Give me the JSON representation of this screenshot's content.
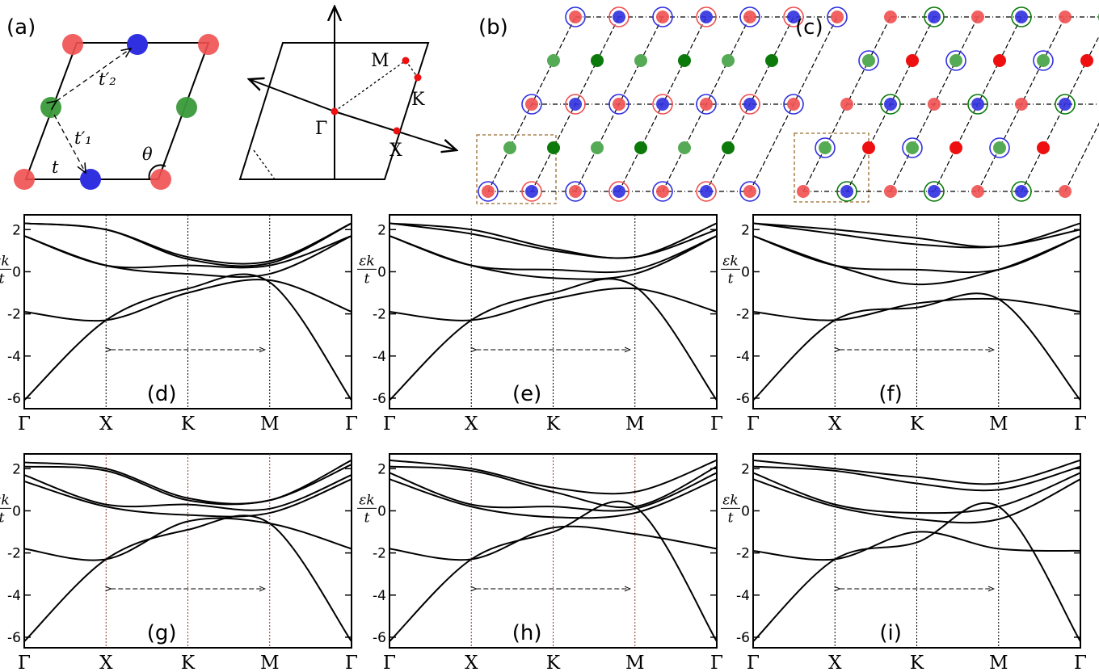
{
  "panel_labels": {
    "a": "(a)",
    "b": "(b)",
    "c": "(c)"
  },
  "lattice": {
    "t": "t",
    "t1": "t′₁",
    "t2": "t′₂",
    "theta": "θ"
  },
  "bz": {
    "gamma": "Γ",
    "m": "M",
    "k": "K",
    "x": "X"
  },
  "ylabel_num": "εk",
  "ylabel_den": "t",
  "colors": {
    "red": "#f05050",
    "blue": "#3030e0",
    "green": "#3a9a3a",
    "darkgreen": "#0b7a0b",
    "brightred": "#ee1010",
    "bands": "#000000"
  },
  "chart_data": [
    {
      "type": "line",
      "label": "(d)",
      "x": [
        "Γ",
        "X",
        "K",
        "M",
        "Γ"
      ],
      "ylim": [
        -6.5,
        2.7
      ],
      "yticks": [
        2,
        0,
        -2,
        -4,
        -6
      ],
      "series": [
        {
          "values": [
            2.3,
            2.0,
            0.7,
            0.5,
            2.3
          ]
        },
        {
          "values": [
            2.3,
            2.0,
            0.6,
            0.4,
            2.3
          ]
        },
        {
          "values": [
            1.7,
            0.3,
            0.3,
            0.3,
            1.7
          ]
        },
        {
          "values": [
            1.7,
            0.3,
            -0.1,
            -0.1,
            1.7
          ]
        },
        {
          "values": [
            -1.9,
            -2.3,
            -1.0,
            -0.4,
            -1.9
          ]
        },
        {
          "values": [
            -6.1,
            -2.3,
            -0.8,
            -0.5,
            -6.1
          ]
        }
      ]
    },
    {
      "type": "line",
      "label": "(e)",
      "x": [
        "Γ",
        "X",
        "K",
        "M",
        "Γ"
      ],
      "ylim": [
        -6.5,
        2.7
      ],
      "yticks": [
        2,
        0,
        -2,
        -4,
        -6
      ],
      "series": [
        {
          "values": [
            2.3,
            2.0,
            1.1,
            0.7,
            2.3
          ]
        },
        {
          "values": [
            2.3,
            1.8,
            1.0,
            0.7,
            2.0
          ]
        },
        {
          "values": [
            1.7,
            0.3,
            0.1,
            0.1,
            1.7
          ]
        },
        {
          "values": [
            1.7,
            0.3,
            -0.3,
            -0.1,
            1.7
          ]
        },
        {
          "values": [
            -1.9,
            -2.3,
            -1.3,
            -0.8,
            -1.9
          ]
        },
        {
          "values": [
            -6.1,
            -2.3,
            -1.0,
            -0.7,
            -6.1
          ]
        }
      ]
    },
    {
      "type": "line",
      "label": "(f)",
      "x": [
        "Γ",
        "X",
        "K",
        "M",
        "Γ"
      ],
      "ylim": [
        -6.5,
        2.7
      ],
      "yticks": [
        2,
        0,
        -2,
        -4,
        -6
      ],
      "series": [
        {
          "values": [
            2.3,
            2.0,
            1.6,
            1.2,
            2.3
          ]
        },
        {
          "values": [
            2.3,
            1.8,
            1.3,
            1.2,
            2.0
          ]
        },
        {
          "values": [
            1.7,
            0.3,
            0.1,
            0.1,
            1.7
          ]
        },
        {
          "values": [
            1.7,
            0.3,
            -0.6,
            0.1,
            1.7
          ]
        },
        {
          "values": [
            -1.9,
            -2.3,
            -1.5,
            -1.3,
            -1.9
          ]
        },
        {
          "values": [
            -6.1,
            -2.3,
            -1.7,
            -1.3,
            -6.1
          ]
        }
      ]
    },
    {
      "type": "line",
      "label": "(g)",
      "x": [
        "Γ",
        "X",
        "K",
        "M",
        "Γ"
      ],
      "ylim": [
        -6.5,
        2.7
      ],
      "yticks": [
        2,
        0,
        -2,
        -4,
        -6
      ],
      "series": [
        {
          "values": [
            2.3,
            2.0,
            0.6,
            0.5,
            2.4
          ]
        },
        {
          "values": [
            2.1,
            1.9,
            0.5,
            0.5,
            2.2
          ]
        },
        {
          "values": [
            1.7,
            0.3,
            0.3,
            0.1,
            1.7
          ]
        },
        {
          "values": [
            1.4,
            0.2,
            -0.2,
            -0.1,
            1.5
          ]
        },
        {
          "values": [
            -1.8,
            -2.3,
            -0.5,
            -0.6,
            -1.8
          ]
        },
        {
          "values": [
            -6.2,
            -2.3,
            -0.9,
            -0.6,
            -6.2
          ]
        }
      ]
    },
    {
      "type": "line",
      "label": "(h)",
      "x": [
        "Γ",
        "X",
        "K",
        "M",
        "Γ"
      ],
      "ylim": [
        -6.5,
        2.7
      ],
      "yticks": [
        2,
        0,
        -2,
        -4,
        -6
      ],
      "series": [
        {
          "values": [
            2.4,
            2.0,
            1.1,
            0.9,
            2.4
          ]
        },
        {
          "values": [
            2.1,
            1.9,
            0.9,
            0.2,
            2.1
          ]
        },
        {
          "values": [
            1.8,
            0.3,
            0.2,
            0.1,
            1.8
          ]
        },
        {
          "values": [
            1.5,
            0.2,
            -0.3,
            -0.1,
            1.5
          ]
        },
        {
          "values": [
            -1.8,
            -2.3,
            -0.8,
            -1.1,
            -1.8
          ]
        },
        {
          "values": [
            -6.2,
            -2.3,
            -1.0,
            0.2,
            -6.2
          ]
        }
      ]
    },
    {
      "type": "line",
      "label": "(i)",
      "x": [
        "Γ",
        "X",
        "K",
        "M",
        "Γ"
      ],
      "ylim": [
        -6.5,
        2.7
      ],
      "yticks": [
        2,
        0,
        -2,
        -4,
        -6
      ],
      "series": [
        {
          "values": [
            2.4,
            2.0,
            1.6,
            1.3,
            2.4
          ]
        },
        {
          "values": [
            2.1,
            1.9,
            1.3,
            1.0,
            2.1
          ]
        },
        {
          "values": [
            1.8,
            0.3,
            -0.1,
            0.2,
            1.8
          ]
        },
        {
          "values": [
            1.5,
            0.2,
            -0.4,
            -0.4,
            1.5
          ]
        },
        {
          "values": [
            -1.9,
            -2.3,
            -1.0,
            -1.8,
            -1.9
          ]
        },
        {
          "values": [
            -6.2,
            -2.3,
            -1.5,
            0.2,
            -6.2
          ]
        }
      ]
    }
  ]
}
